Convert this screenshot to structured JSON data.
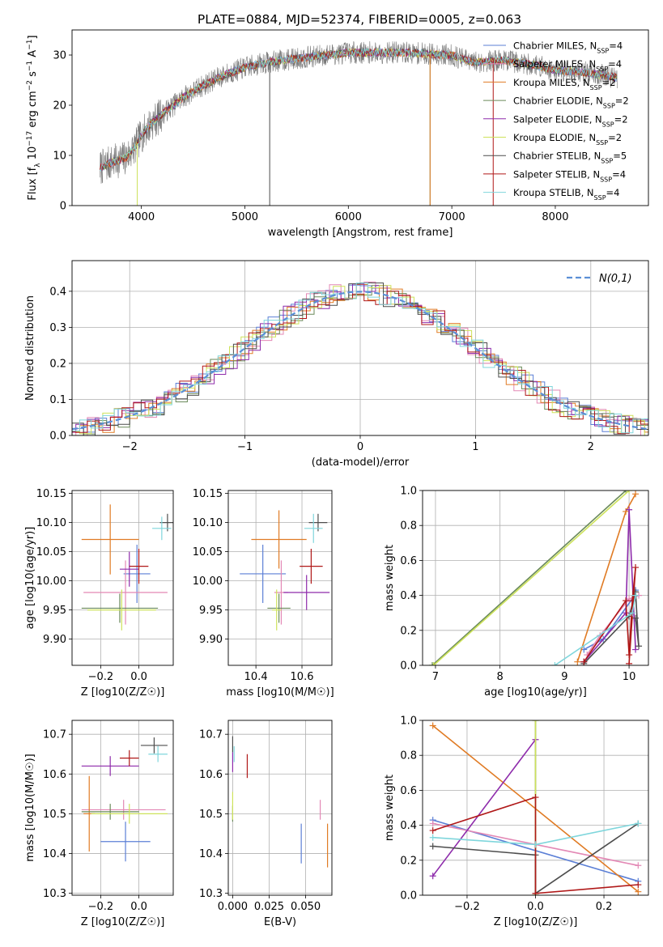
{
  "figure_title": "PLATE=0884, MJD=52374, FIBERID=0005, z=0.063",
  "colors": {
    "Chabrier MILES": "#5b7fd6",
    "Salpeter MILES": "#e388b5",
    "Kroupa MILES": "#e07b24",
    "Chabrier ELODIE": "#6a8a5a",
    "Salpeter ELODIE": "#8e2bab",
    "Kroupa ELODIE": "#cde25a",
    "Chabrier STELIB": "#4d4d4d",
    "Salpeter STELIB": "#b01818",
    "Kroupa STELIB": "#7fd6dc"
  },
  "chart_data": [
    {
      "id": "spectrum",
      "type": "line",
      "title": "PLATE=0884, MJD=52374, FIBERID=0005, z=0.063",
      "xlabel": "wavelength [Angstrom, rest frame]",
      "ylabel": "Flux [f_λ 10^-17 erg cm^-2 s^-1 A^-1]",
      "xlim": [
        3330,
        8900
      ],
      "ylim": [
        0,
        35
      ],
      "xticks": [
        4000,
        5000,
        6000,
        7000,
        8000
      ],
      "yticks": [
        0,
        10,
        20,
        30
      ],
      "grid": false,
      "legend_position": "right",
      "spectrum_range": [
        3600,
        8600
      ],
      "continuum": [
        [
          3600,
          7.5
        ],
        [
          3700,
          8.5
        ],
        [
          3850,
          9.5
        ],
        [
          3950,
          12
        ],
        [
          4000,
          14
        ],
        [
          4100,
          16.5
        ],
        [
          4250,
          19
        ],
        [
          4400,
          21.5
        ],
        [
          4600,
          24
        ],
        [
          4800,
          26
        ],
        [
          5000,
          27.5
        ],
        [
          5200,
          28.5
        ],
        [
          5500,
          29.3
        ],
        [
          6000,
          30.5
        ],
        [
          6500,
          30.5
        ],
        [
          7000,
          30
        ],
        [
          7200,
          28.5
        ],
        [
          7500,
          29
        ],
        [
          7800,
          28
        ],
        [
          8000,
          27
        ],
        [
          8300,
          26.5
        ],
        [
          8600,
          25.5
        ]
      ],
      "spikes": [
        {
          "x": 3960,
          "y": 0,
          "series": "Kroupa ELODIE"
        },
        {
          "x": 5240,
          "y": 0,
          "series": "Chabrier STELIB"
        },
        {
          "x": 6790,
          "y": 0,
          "series": "Chabrier ELODIE"
        },
        {
          "x": 6790,
          "y": 0,
          "series": "Kroupa MILES"
        },
        {
          "x": 7400,
          "y": 0,
          "series": "Salpeter STELIB"
        }
      ],
      "legend": [
        {
          "name": "Chabrier MILES",
          "nssp": "4"
        },
        {
          "name": "Salpeter MILES",
          "nssp": "4"
        },
        {
          "name": "Kroupa MILES",
          "nssp": "2"
        },
        {
          "name": "Chabrier ELODIE",
          "nssp": "2"
        },
        {
          "name": "Salpeter ELODIE",
          "nssp": "2"
        },
        {
          "name": "Kroupa ELODIE",
          "nssp": "2"
        },
        {
          "name": "Chabrier STELIB",
          "nssp": "5"
        },
        {
          "name": "Salpeter STELIB",
          "nssp": "4"
        },
        {
          "name": "Kroupa STELIB",
          "nssp": "4"
        }
      ]
    },
    {
      "id": "residuals",
      "type": "histogram",
      "xlabel": "(data-model)/error",
      "ylabel": "Normed distribution",
      "xlim": [
        -2.5,
        2.5
      ],
      "ylim": [
        0,
        0.485
      ],
      "xticks": [
        -2,
        -1,
        0,
        1,
        2
      ],
      "yticks": [
        0.0,
        0.1,
        0.2,
        0.3,
        0.4
      ],
      "grid": true,
      "bin_width": 0.1,
      "legend_label": "N(0,1)",
      "legend_position": "top-right",
      "reference_curve": {
        "name": "N(0,1)",
        "mean": 0,
        "sigma": 1
      }
    },
    {
      "id": "age_vs_Z",
      "type": "errorbar",
      "xlabel": "Z [log10(Z/Z☉)]",
      "ylabel": "age [log10(age/yr)]",
      "xlim": [
        -0.35,
        0.18
      ],
      "ylim": [
        9.855,
        10.155
      ],
      "xticks": [
        -0.2,
        0.0
      ],
      "yticks": [
        9.9,
        9.95,
        10.0,
        10.05,
        10.1,
        10.15
      ],
      "grid": true,
      "points": [
        {
          "series": "Chabrier MILES",
          "x": -0.01,
          "xerr": 0.07,
          "y": 10.012,
          "yerr": 0.1
        },
        {
          "series": "Salpeter MILES",
          "x": -0.07,
          "xerr": 0.22,
          "y": 9.98,
          "yerr": 0.11
        },
        {
          "series": "Kroupa MILES",
          "x": -0.15,
          "xerr": 0.15,
          "y": 10.071,
          "yerr": 0.12
        },
        {
          "series": "Chabrier ELODIE",
          "x": -0.1,
          "xerr": 0.2,
          "y": 9.953,
          "yerr": 0.05
        },
        {
          "series": "Salpeter ELODIE",
          "x": -0.05,
          "xerr": 0.05,
          "y": 10.02,
          "yerr": 0.06
        },
        {
          "series": "Kroupa ELODIE",
          "x": -0.09,
          "xerr": 0.18,
          "y": 9.95,
          "yerr": 0.07
        },
        {
          "series": "Chabrier STELIB",
          "x": 0.15,
          "xerr": 0.04,
          "y": 10.1,
          "yerr": 0.03
        },
        {
          "series": "Salpeter STELIB",
          "x": 0.0,
          "xerr": 0.05,
          "y": 10.025,
          "yerr": 0.06
        },
        {
          "series": "Kroupa STELIB",
          "x": 0.12,
          "xerr": 0.05,
          "y": 10.09,
          "yerr": 0.04
        }
      ]
    },
    {
      "id": "age_vs_mass",
      "type": "errorbar",
      "xlabel": "mass [log10(M/M☉)]",
      "ylabel": "",
      "xlim": [
        10.28,
        10.73
      ],
      "ylim": [
        9.855,
        10.155
      ],
      "xticks": [
        10.4,
        10.6
      ],
      "yticks": [
        9.9,
        9.95,
        10.0,
        10.05,
        10.1,
        10.15
      ],
      "grid": true,
      "points": [
        {
          "series": "Chabrier MILES",
          "x": 10.43,
          "xerr": 0.1,
          "y": 10.012,
          "yerr": 0.1
        },
        {
          "series": "Salpeter MILES",
          "x": 10.51,
          "xerr": 0.03,
          "y": 9.98,
          "yerr": 0.11
        },
        {
          "series": "Kroupa MILES",
          "x": 10.5,
          "xerr": 0.12,
          "y": 10.071,
          "yerr": 0.1
        },
        {
          "series": "Chabrier ELODIE",
          "x": 10.5,
          "xerr": 0.05,
          "y": 9.953,
          "yerr": 0.05
        },
        {
          "series": "Salpeter ELODIE",
          "x": 10.62,
          "xerr": 0.1,
          "y": 9.98,
          "yerr": 0.06
        },
        {
          "series": "Kroupa ELODIE",
          "x": 10.49,
          "xerr": 0.02,
          "y": 9.95,
          "yerr": 0.07
        },
        {
          "series": "Chabrier STELIB",
          "x": 10.67,
          "xerr": 0.04,
          "y": 10.1,
          "yerr": 0.03
        },
        {
          "series": "Salpeter STELIB",
          "x": 10.64,
          "xerr": 0.05,
          "y": 10.025,
          "yerr": 0.06
        },
        {
          "series": "Kroupa STELIB",
          "x": 10.65,
          "xerr": 0.04,
          "y": 10.09,
          "yerr": 0.05
        }
      ]
    },
    {
      "id": "weight_vs_age",
      "type": "line",
      "xlabel": "age [log10(age/yr)]",
      "ylabel": "mass weight",
      "xlim": [
        6.8,
        10.3
      ],
      "ylim": [
        0,
        1.0
      ],
      "xticks": [
        7,
        8,
        9,
        10
      ],
      "yticks": [
        0.0,
        0.2,
        0.4,
        0.6,
        0.8,
        1.0
      ],
      "grid": true,
      "series": [
        {
          "name": "Chabrier MILES",
          "points": [
            [
              9.3,
              0.09
            ],
            [
              9.6,
              0.15
            ],
            [
              10.05,
              0.38
            ],
            [
              10.1,
              0.43
            ]
          ]
        },
        {
          "name": "Salpeter MILES",
          "points": [
            [
              9.35,
              0.06
            ],
            [
              9.55,
              0.17
            ],
            [
              10.0,
              0.38
            ],
            [
              10.15,
              0.4
            ]
          ]
        },
        {
          "name": "Kroupa MILES",
          "points": [
            [
              9.2,
              0.02
            ],
            [
              9.95,
              0.88
            ],
            [
              10.1,
              0.98
            ]
          ]
        },
        {
          "name": "Chabrier ELODIE",
          "points": [
            [
              6.95,
              0.0
            ],
            [
              9.95,
              1.0
            ]
          ]
        },
        {
          "name": "Salpeter ELODIE",
          "points": [
            [
              9.3,
              0.02
            ],
            [
              9.95,
              0.3
            ],
            [
              10.0,
              0.89
            ],
            [
              10.1,
              0.09
            ]
          ]
        },
        {
          "name": "Kroupa ELODIE",
          "points": [
            [
              6.97,
              0.0
            ],
            [
              10.0,
              1.0
            ]
          ]
        },
        {
          "name": "Chabrier STELIB",
          "points": [
            [
              9.3,
              0.01
            ],
            [
              10.0,
              0.28
            ],
            [
              10.1,
              0.42
            ],
            [
              10.15,
              0.11
            ],
            [
              10.1,
              0.27
            ]
          ]
        },
        {
          "name": "Salpeter STELIB",
          "points": [
            [
              9.3,
              0.02
            ],
            [
              9.95,
              0.37
            ],
            [
              10.0,
              0.06
            ],
            [
              10.05,
              0.37
            ],
            [
              10.1,
              0.56
            ],
            [
              10.0,
              0.01
            ]
          ]
        },
        {
          "name": "Kroupa STELIB",
          "points": [
            [
              8.85,
              0.0
            ],
            [
              10.05,
              0.3
            ],
            [
              10.1,
              0.4
            ]
          ]
        }
      ]
    },
    {
      "id": "mass_vs_Z",
      "type": "errorbar",
      "xlabel": "Z [log10(Z/Z☉)]",
      "ylabel": "mass [log10(M/M☉)]",
      "xlim": [
        -0.35,
        0.18
      ],
      "ylim": [
        10.295,
        10.735
      ],
      "xticks": [
        -0.2,
        0.0
      ],
      "yticks": [
        10.3,
        10.4,
        10.5,
        10.6,
        10.7
      ],
      "grid": true,
      "points": [
        {
          "series": "Chabrier MILES",
          "x": -0.07,
          "xerr": 0.13,
          "y": 10.43,
          "yerr": 0.1
        },
        {
          "series": "Salpeter MILES",
          "x": -0.08,
          "xerr": 0.22,
          "y": 10.51,
          "yerr": 0.05
        },
        {
          "series": "Kroupa MILES",
          "x": -0.26,
          "xerr": 0.03,
          "y": 10.5,
          "yerr": 0.19
        },
        {
          "series": "Chabrier ELODIE",
          "x": -0.15,
          "xerr": 0.15,
          "y": 10.505,
          "yerr": 0.04
        },
        {
          "series": "Salpeter ELODIE",
          "x": -0.15,
          "xerr": 0.15,
          "y": 10.62,
          "yerr": 0.05
        },
        {
          "series": "Kroupa ELODIE",
          "x": -0.05,
          "xerr": 0.2,
          "y": 10.5,
          "yerr": 0.05
        },
        {
          "series": "Chabrier STELIB",
          "x": 0.08,
          "xerr": 0.07,
          "y": 10.672,
          "yerr": 0.04
        },
        {
          "series": "Salpeter STELIB",
          "x": -0.05,
          "xerr": 0.05,
          "y": 10.64,
          "yerr": 0.04
        },
        {
          "series": "Kroupa STELIB",
          "x": 0.1,
          "xerr": 0.05,
          "y": 10.65,
          "yerr": 0.04
        }
      ]
    },
    {
      "id": "mass_vs_ebv",
      "type": "errorbar",
      "xlabel": "E(B-V)",
      "ylabel": "",
      "xlim": [
        -0.003,
        0.068
      ],
      "ylim": [
        10.295,
        10.735
      ],
      "xticks": [
        0.0,
        0.025,
        0.05
      ],
      "yticks": [
        10.3,
        10.4,
        10.5,
        10.6,
        10.7
      ],
      "grid": true,
      "points": [
        {
          "series": "Chabrier MILES",
          "x": 0.047,
          "y": 10.425,
          "yerr": 0.1
        },
        {
          "series": "Salpeter MILES",
          "x": 0.06,
          "y": 10.51,
          "yerr": 0.05
        },
        {
          "series": "Kroupa MILES",
          "x": 0.065,
          "y": 10.42,
          "yerr": 0.11
        },
        {
          "series": "Chabrier ELODIE",
          "x": 0.0,
          "y": 10.5,
          "yerr": 0.04
        },
        {
          "series": "Salpeter ELODIE",
          "x": 0.0,
          "y": 10.63,
          "yerr": 0.05
        },
        {
          "series": "Kroupa ELODIE",
          "x": 0.0,
          "y": 10.52,
          "yerr": 0.07
        },
        {
          "series": "Chabrier STELIB",
          "x": 0.0,
          "y": 10.675,
          "yerr": 0.04
        },
        {
          "series": "Salpeter STELIB",
          "x": 0.01,
          "y": 10.62,
          "yerr": 0.06
        },
        {
          "series": "Kroupa STELIB",
          "x": 0.001,
          "y": 10.65,
          "yerr": 0.04
        }
      ]
    },
    {
      "id": "weight_vs_Z",
      "type": "line",
      "xlabel": "Z [log10(Z/Z☉)]",
      "ylabel": "mass weight",
      "xlim": [
        -0.33,
        0.33
      ],
      "ylim": [
        0,
        1.0
      ],
      "xticks": [
        -0.2,
        0.0,
        0.2
      ],
      "yticks": [
        0.0,
        0.2,
        0.4,
        0.6,
        0.8,
        1.0
      ],
      "grid": true,
      "series": [
        {
          "name": "Chabrier MILES",
          "points": [
            [
              -0.3,
              0.43
            ],
            [
              0.3,
              0.08
            ]
          ]
        },
        {
          "name": "Salpeter MILES",
          "points": [
            [
              -0.3,
              0.41
            ],
            [
              0.3,
              0.17
            ]
          ]
        },
        {
          "name": "Kroupa MILES",
          "points": [
            [
              -0.3,
              0.97
            ],
            [
              0.3,
              0.02
            ]
          ]
        },
        {
          "name": "Chabrier ELODIE",
          "points": [
            [
              0.0,
              0.0
            ],
            [
              0.0,
              1.0
            ]
          ]
        },
        {
          "name": "Salpeter ELODIE",
          "points": [
            [
              -0.3,
              0.11
            ],
            [
              0.0,
              0.89
            ]
          ]
        },
        {
          "name": "Kroupa ELODIE",
          "points": [
            [
              0.0,
              0.0
            ],
            [
              0.0,
              1.0
            ]
          ]
        },
        {
          "name": "Chabrier STELIB",
          "points": [
            [
              -0.3,
              0.28
            ],
            [
              0.0,
              0.23
            ],
            [
              0.0,
              0.01
            ],
            [
              0.3,
              0.41
            ]
          ]
        },
        {
          "name": "Salpeter STELIB",
          "points": [
            [
              -0.3,
              0.37
            ],
            [
              0.0,
              0.56
            ],
            [
              0.0,
              0.01
            ],
            [
              0.3,
              0.06
            ]
          ]
        },
        {
          "name": "Kroupa STELIB",
          "points": [
            [
              -0.3,
              0.33
            ],
            [
              0.0,
              0.29
            ],
            [
              0.3,
              0.41
            ]
          ]
        }
      ]
    }
  ]
}
